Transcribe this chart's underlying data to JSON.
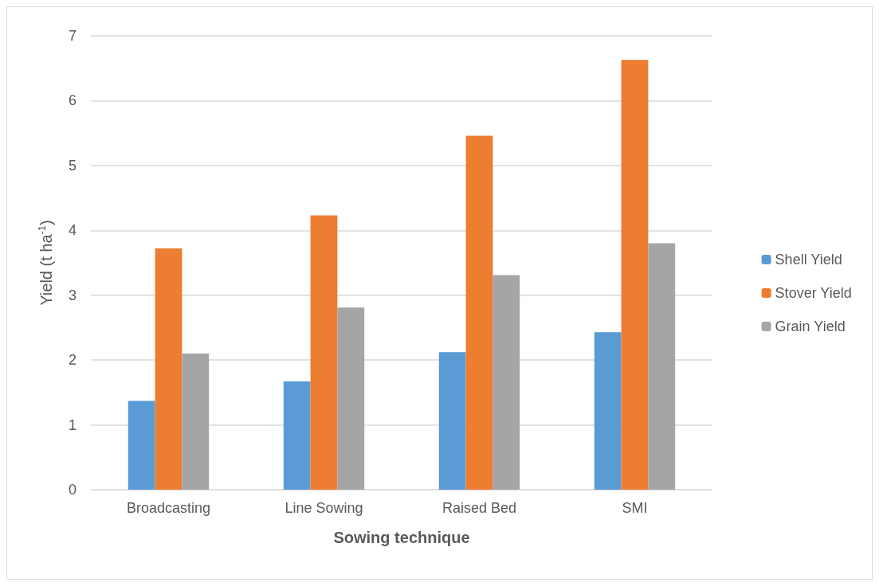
{
  "chart_data": {
    "type": "bar",
    "xlabel": "Sowing technique",
    "ylabel": "Yield (t ha$^{-1}$)",
    "categories": [
      "Broadcasting",
      "Line Sowing",
      "Raised Bed",
      "SMI"
    ],
    "series": [
      {
        "name": "Shell Yield",
        "color": "#5b9bd5",
        "values": [
          1.37,
          1.67,
          2.12,
          2.43
        ]
      },
      {
        "name": "Stover Yield",
        "color": "#ed7d31",
        "values": [
          3.72,
          4.23,
          5.46,
          6.63
        ]
      },
      {
        "name": "Grain Yield",
        "color": "#a5a5a5",
        "values": [
          2.1,
          2.81,
          3.31,
          3.8
        ]
      }
    ],
    "ylim": [
      0,
      7
    ],
    "yticks": [
      0,
      1,
      2,
      3,
      4,
      5,
      6,
      7
    ],
    "grid": "y",
    "legend": "right"
  }
}
